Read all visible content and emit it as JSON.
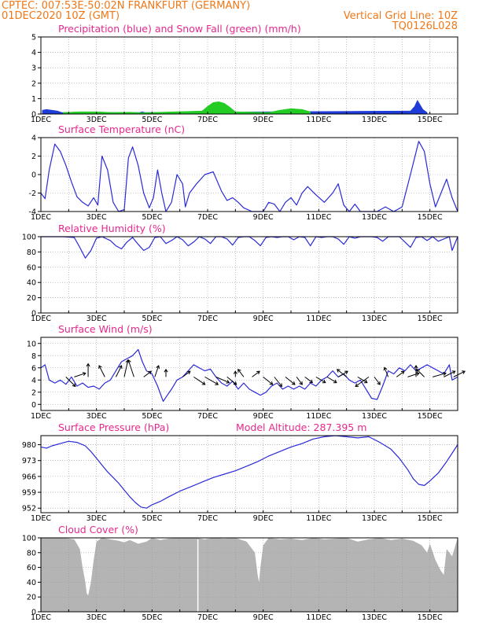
{
  "header": {
    "line1": "CPTEC:   007:53E-50:02N  FRANKFURT (GERMANY)",
    "line2_left": "01DEC2020 10Z (GMT)",
    "line2_right": "Vertical Grid Line: 10Z",
    "line3_right": "TQ0126L028"
  },
  "colors": {
    "header": "#f07818",
    "panel_title": "#e8288c",
    "line": "#2a2ad8",
    "snow": "#22cc22",
    "precip": "#1e3cd8",
    "cloud": "#b4b4b4",
    "wind_arrow": "#000000",
    "grid": "#9a9a9a"
  },
  "x_labels": [
    "1DEC",
    "3DEC",
    "5DEC",
    "7DEC",
    "9DEC",
    "11DEC",
    "13DEC",
    "15DEC"
  ],
  "x_axis": {
    "start_day": 1,
    "end_day": 16,
    "label_days": [
      1,
      3,
      5,
      7,
      9,
      11,
      13,
      15
    ]
  },
  "chart_data": [
    {
      "type": "area",
      "title": "Precipitation (blue) and Snow Fall (green) (mm/h)",
      "ylim": [
        0,
        5
      ],
      "yticks": [
        0,
        1,
        2,
        3,
        4,
        5
      ],
      "series": [
        {
          "name": "Precipitation",
          "color": "#1e3cd8",
          "x": [
            1.05,
            1.2,
            1.4,
            1.6,
            1.75,
            4.55,
            4.65,
            4.75,
            14.3,
            14.45,
            14.55,
            14.65,
            14.75,
            14.9
          ],
          "values": [
            0.25,
            0.3,
            0.25,
            0.2,
            0.1,
            0.1,
            0.15,
            0.1,
            0.2,
            0.5,
            0.9,
            0.6,
            0.3,
            0.1
          ]
        },
        {
          "name": "Snow Fall",
          "color": "#22cc22",
          "x": [
            1.8,
            2.4,
            3.0,
            3.6,
            4.2,
            4.6,
            6.8,
            7.0,
            7.2,
            7.4,
            7.6,
            7.8,
            8.0,
            9.2,
            9.6,
            10.0,
            10.4,
            10.7
          ],
          "values": [
            0.1,
            0.15,
            0.15,
            0.1,
            0.12,
            0.08,
            0.2,
            0.5,
            0.75,
            0.8,
            0.7,
            0.45,
            0.15,
            0.1,
            0.25,
            0.35,
            0.3,
            0.15
          ]
        }
      ]
    },
    {
      "type": "line",
      "title": "Surface Temperature (nC)",
      "ylim": [
        -4,
        4
      ],
      "yticks": [
        -4,
        -2,
        0,
        2,
        4
      ],
      "series": [
        {
          "x": [
            1.0,
            1.15,
            1.3,
            1.5,
            1.7,
            1.9,
            2.1,
            2.3,
            2.5,
            2.7,
            2.9,
            3.05,
            3.2,
            3.4,
            3.6,
            3.8,
            4.0,
            4.15,
            4.3,
            4.5,
            4.7,
            4.9,
            5.05,
            5.2,
            5.35,
            5.5,
            5.7,
            5.9,
            6.1,
            6.2,
            6.35,
            6.6,
            6.9,
            7.2,
            7.5,
            7.7,
            7.9,
            8.1,
            8.3,
            8.6,
            9.0,
            9.2,
            9.4,
            9.6,
            9.8,
            10.0,
            10.2,
            10.4,
            10.6,
            10.9,
            11.2,
            11.5,
            11.7,
            11.9,
            12.1,
            12.3,
            12.5,
            12.8,
            13.1,
            13.4,
            13.7,
            14.0,
            14.3,
            14.6,
            14.8,
            15.0,
            15.2,
            15.4,
            15.6,
            15.8,
            16.0
          ],
          "values": [
            -2.0,
            -2.6,
            0.5,
            3.3,
            2.5,
            1.0,
            -0.8,
            -2.4,
            -3.0,
            -3.4,
            -2.5,
            -3.3,
            2.0,
            0.5,
            -3.0,
            -4.0,
            -3.8,
            1.8,
            3.0,
            1.0,
            -2.0,
            -3.6,
            -2.5,
            0.5,
            -2.0,
            -4.0,
            -3.0,
            0.0,
            -1.0,
            -3.5,
            -2.0,
            -1.0,
            0.0,
            0.3,
            -1.8,
            -2.8,
            -2.5,
            -3.0,
            -3.6,
            -4.1,
            -4.2,
            -3.0,
            -3.2,
            -4.0,
            -3.0,
            -2.5,
            -3.3,
            -2.0,
            -1.3,
            -2.2,
            -3.0,
            -2.0,
            -1.0,
            -3.3,
            -4.0,
            -3.2,
            -4.0,
            -4.0,
            -4.1,
            -3.5,
            -4.1,
            -3.5,
            0.0,
            3.6,
            2.5,
            -1.0,
            -3.5,
            -2.0,
            -0.5,
            -2.5,
            -4.0
          ]
        }
      ]
    },
    {
      "type": "line",
      "title": "Relative Humidity (%)",
      "ylim": [
        0,
        100
      ],
      "yticks": [
        0,
        20,
        40,
        60,
        80,
        100
      ],
      "series": [
        {
          "x": [
            1.0,
            1.4,
            1.8,
            2.2,
            2.4,
            2.6,
            2.8,
            3.0,
            3.2,
            3.5,
            3.7,
            3.9,
            4.1,
            4.3,
            4.5,
            4.7,
            4.9,
            5.1,
            5.3,
            5.5,
            5.7,
            5.9,
            6.1,
            6.3,
            6.5,
            6.7,
            6.9,
            7.1,
            7.3,
            7.5,
            7.7,
            7.9,
            8.1,
            8.3,
            8.5,
            8.7,
            8.9,
            9.1,
            9.3,
            9.5,
            9.7,
            9.9,
            10.1,
            10.3,
            10.5,
            10.7,
            10.9,
            11.1,
            11.3,
            11.5,
            11.7,
            11.9,
            12.1,
            12.3,
            12.5,
            12.7,
            12.9,
            13.1,
            13.3,
            13.5,
            13.7,
            13.9,
            14.1,
            14.3,
            14.5,
            14.7,
            14.9,
            15.1,
            15.3,
            15.5,
            15.7,
            15.8,
            16.0
          ],
          "values": [
            100,
            100,
            100,
            99,
            86,
            72,
            82,
            98,
            100,
            95,
            88,
            84,
            93,
            99,
            90,
            82,
            86,
            99,
            100,
            91,
            95,
            100,
            96,
            88,
            93,
            100,
            97,
            91,
            100,
            100,
            97,
            89,
            99,
            100,
            100,
            95,
            88,
            99,
            100,
            99,
            100,
            100,
            96,
            100,
            99,
            88,
            100,
            99,
            100,
            100,
            97,
            90,
            100,
            98,
            100,
            100,
            100,
            99,
            94,
            100,
            100,
            100,
            93,
            86,
            99,
            100,
            95,
            100,
            94,
            97,
            100,
            82,
            100
          ]
        }
      ]
    },
    {
      "type": "line",
      "title": "Surface Wind (m/s)",
      "ylim": [
        -1,
        11
      ],
      "yticks": [
        0,
        2,
        4,
        6,
        8,
        10
      ],
      "series": [
        {
          "x": [
            1.0,
            1.15,
            1.3,
            1.5,
            1.7,
            1.9,
            2.1,
            2.3,
            2.5,
            2.7,
            2.9,
            3.1,
            3.3,
            3.5,
            3.7,
            3.9,
            4.1,
            4.3,
            4.5,
            4.65,
            4.8,
            5.0,
            5.2,
            5.4,
            5.55,
            5.7,
            5.9,
            6.1,
            6.3,
            6.5,
            6.7,
            6.9,
            7.1,
            7.3,
            7.5,
            7.7,
            7.9,
            8.1,
            8.3,
            8.5,
            8.7,
            8.9,
            9.1,
            9.3,
            9.5,
            9.7,
            9.9,
            10.1,
            10.3,
            10.5,
            10.7,
            10.9,
            11.1,
            11.3,
            11.5,
            11.7,
            11.9,
            12.1,
            12.3,
            12.5,
            12.7,
            12.9,
            13.1,
            13.3,
            13.5,
            13.7,
            13.9,
            14.1,
            14.3,
            14.5,
            14.7,
            14.9,
            15.1,
            15.3,
            15.5,
            15.7,
            15.8,
            16.0
          ],
          "values": [
            6.0,
            6.5,
            4.0,
            3.5,
            4.0,
            3.3,
            4.5,
            3.0,
            3.5,
            2.8,
            3.0,
            2.5,
            3.5,
            4.0,
            5.5,
            7.0,
            7.5,
            8.0,
            9.0,
            7.0,
            5.5,
            5.0,
            3.0,
            0.5,
            1.5,
            2.5,
            4.0,
            4.5,
            5.5,
            6.5,
            6.0,
            5.5,
            5.8,
            4.5,
            3.5,
            3.0,
            3.8,
            2.5,
            3.5,
            2.5,
            2.0,
            1.5,
            2.0,
            3.0,
            3.5,
            2.5,
            3.0,
            2.5,
            3.0,
            2.5,
            3.5,
            3.0,
            4.0,
            4.5,
            5.5,
            4.5,
            5.0,
            4.0,
            3.5,
            4.0,
            2.5,
            1.0,
            0.8,
            3.0,
            5.5,
            5.0,
            6.0,
            5.5,
            6.5,
            5.5,
            6.0,
            6.5,
            6.0,
            5.5,
            5.0,
            6.5,
            4.0,
            4.5
          ]
        }
      ],
      "wind_vectors": [
        {
          "x": 1.9,
          "dx": 5,
          "dy": -5
        },
        {
          "x": 2.2,
          "dx": 6,
          "dy": 2
        },
        {
          "x": 2.7,
          "dx": 0,
          "dy": 7
        },
        {
          "x": 3.3,
          "dx": -3,
          "dy": 6
        },
        {
          "x": 3.7,
          "dx": 3,
          "dy": 6
        },
        {
          "x": 4.0,
          "dx": 2,
          "dy": 9
        },
        {
          "x": 4.35,
          "dx": -3,
          "dy": 9
        },
        {
          "x": 4.7,
          "dx": 4,
          "dy": 3
        },
        {
          "x": 5.1,
          "dx": 2,
          "dy": 6
        },
        {
          "x": 5.5,
          "dx": 0,
          "dy": 4
        },
        {
          "x": 6.1,
          "dx": 4,
          "dy": 3
        },
        {
          "x": 6.5,
          "dx": 6,
          "dy": -4
        },
        {
          "x": 6.9,
          "dx": 7,
          "dy": -4
        },
        {
          "x": 7.3,
          "dx": 7,
          "dy": -3
        },
        {
          "x": 7.7,
          "dx": 5,
          "dy": -4
        },
        {
          "x": 8.0,
          "dx": 0,
          "dy": 3
        },
        {
          "x": 8.3,
          "dx": -3,
          "dy": 4
        },
        {
          "x": 8.6,
          "dx": 4,
          "dy": 3
        },
        {
          "x": 9.0,
          "dx": 5,
          "dy": -4
        },
        {
          "x": 9.4,
          "dx": 4,
          "dy": -5
        },
        {
          "x": 9.8,
          "dx": 5,
          "dy": -4
        },
        {
          "x": 10.2,
          "dx": 3,
          "dy": -4
        },
        {
          "x": 10.5,
          "dx": 4,
          "dy": -3
        },
        {
          "x": 10.9,
          "dx": 5,
          "dy": -3
        },
        {
          "x": 11.3,
          "dx": 5,
          "dy": -3
        },
        {
          "x": 11.7,
          "dx": 5,
          "dy": 3
        },
        {
          "x": 12.0,
          "dx": -5,
          "dy": 4
        },
        {
          "x": 12.4,
          "dx": 5,
          "dy": -3
        },
        {
          "x": 12.8,
          "dx": -7,
          "dy": -5
        },
        {
          "x": 13.0,
          "dx": 3,
          "dy": -4
        },
        {
          "x": 13.5,
          "dx": -2,
          "dy": 5
        },
        {
          "x": 13.8,
          "dx": 4,
          "dy": 3
        },
        {
          "x": 14.2,
          "dx": 6,
          "dy": 2
        },
        {
          "x": 14.5,
          "dx": 0,
          "dy": 6
        },
        {
          "x": 14.8,
          "dx": -4,
          "dy": 4
        },
        {
          "x": 15.1,
          "dx": 7,
          "dy": 2
        },
        {
          "x": 15.5,
          "dx": 6,
          "dy": 3
        },
        {
          "x": 15.85,
          "dx": 6,
          "dy": 3
        }
      ]
    },
    {
      "type": "line",
      "title": "Surface Pressure (hPa)",
      "annotation": "Model Altitude: 287.395 m",
      "ylim": [
        950,
        984
      ],
      "yticks": [
        952,
        959,
        966,
        973,
        980
      ],
      "series": [
        {
          "x": [
            1.0,
            1.2,
            1.4,
            1.7,
            2.0,
            2.3,
            2.6,
            2.8,
            3.0,
            3.2,
            3.4,
            3.6,
            3.8,
            4.0,
            4.2,
            4.4,
            4.6,
            4.8,
            5.0,
            5.3,
            5.6,
            6.0,
            6.4,
            6.8,
            7.2,
            7.6,
            8.0,
            8.4,
            8.8,
            9.2,
            9.6,
            10.0,
            10.4,
            10.8,
            11.2,
            11.6,
            12.0,
            12.4,
            12.8,
            13.2,
            13.6,
            13.9,
            14.2,
            14.4,
            14.6,
            14.8,
            15.0,
            15.3,
            15.6,
            16.0
          ],
          "values": [
            979,
            978.5,
            979.5,
            980.5,
            981.5,
            981,
            979.5,
            977,
            974,
            971,
            968,
            965.5,
            963,
            960,
            957,
            954.5,
            952.5,
            952,
            953.5,
            955,
            957,
            959.5,
            961.5,
            963.5,
            965.5,
            967,
            968.5,
            970.5,
            972.5,
            975,
            977,
            979,
            980.5,
            982.5,
            983.5,
            984,
            983.5,
            983,
            983.5,
            981,
            978,
            974,
            969,
            965,
            962.5,
            962,
            964,
            967.5,
            972.5,
            980
          ]
        }
      ]
    },
    {
      "type": "area",
      "title": "Cloud Cover (%)",
      "ylim": [
        0,
        100
      ],
      "yticks": [
        0,
        20,
        40,
        60,
        80,
        100
      ],
      "series": [
        {
          "x": [
            1.0,
            1.8,
            2.2,
            2.4,
            2.5,
            2.6,
            2.65,
            2.7,
            2.8,
            2.9,
            3.0,
            3.2,
            3.5,
            3.8,
            4.0,
            4.2,
            4.5,
            4.8,
            5.0,
            5.3,
            5.6,
            6.0,
            6.5,
            6.6,
            6.9,
            7.2,
            7.6,
            8.0,
            8.4,
            8.7,
            8.8,
            8.85,
            8.9,
            9.0,
            9.2,
            9.6,
            10.0,
            10.4,
            10.8,
            11.2,
            11.6,
            12.0,
            12.4,
            12.8,
            13.2,
            13.6,
            14.0,
            14.4,
            14.7,
            14.9,
            15.0,
            15.2,
            15.4,
            15.5,
            15.6,
            15.8,
            16.0
          ],
          "values": [
            100,
            100,
            98,
            85,
            60,
            40,
            25,
            22,
            40,
            70,
            95,
            100,
            98,
            96,
            94,
            97,
            92,
            95,
            100,
            97,
            99,
            100,
            100,
            100,
            98,
            100,
            99,
            100,
            95,
            80,
            50,
            40,
            60,
            90,
            100,
            98,
            99,
            97,
            100,
            98,
            99,
            100,
            95,
            98,
            100,
            97,
            99,
            96,
            90,
            80,
            92,
            70,
            55,
            50,
            85,
            75,
            100
          ]
        }
      ]
    }
  ]
}
